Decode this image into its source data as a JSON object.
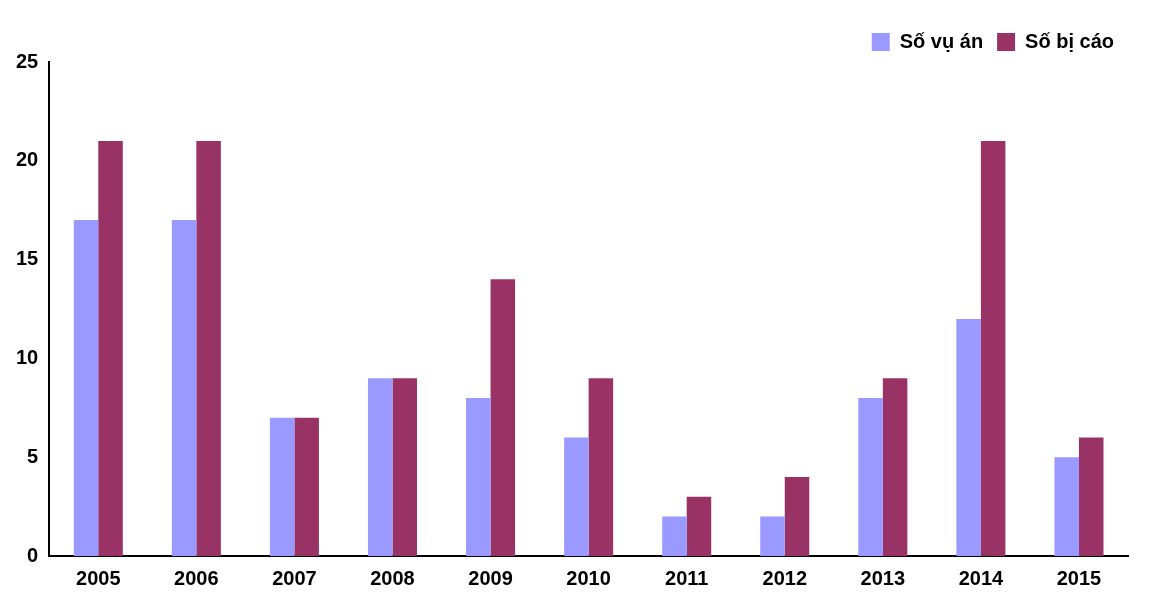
{
  "chart_data": {
    "type": "bar",
    "categories": [
      "2005",
      "2006",
      "2007",
      "2008",
      "2009",
      "2010",
      "2011",
      "2012",
      "2013",
      "2014",
      "2015"
    ],
    "series": [
      {
        "name": "Số vụ án",
        "color": "#9999ff",
        "values": [
          17,
          17,
          7,
          9,
          8,
          6,
          2,
          2,
          8,
          12,
          5
        ]
      },
      {
        "name": "Số bị cáo",
        "color": "#993366",
        "values": [
          21,
          21,
          7,
          9,
          14,
          9,
          3,
          4,
          9,
          21,
          6
        ]
      }
    ],
    "ylim": [
      0,
      25
    ],
    "yticks": [
      0,
      5,
      10,
      15,
      20,
      25
    ],
    "grid": false,
    "legend": "top"
  }
}
